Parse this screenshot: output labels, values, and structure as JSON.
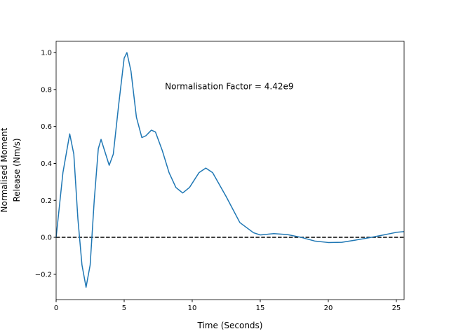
{
  "chart_data": {
    "type": "line",
    "x_label": "Time (Seconds)",
    "y_label": [
      "Normalised Moment",
      "Release (Nm/s)"
    ],
    "annotation": {
      "text": "Normalisation Factor = 4.42e9",
      "x": 8,
      "y": 0.82
    },
    "reference_line": {
      "y": 0,
      "color": "#000000"
    },
    "x": [
      0,
      0.5,
      1.0,
      1.3,
      1.6,
      1.9,
      2.2,
      2.5,
      2.8,
      3.1,
      3.3,
      3.6,
      3.9,
      4.2,
      4.6,
      5.0,
      5.2,
      5.5,
      5.9,
      6.3,
      6.6,
      7.0,
      7.3,
      7.8,
      8.3,
      8.8,
      9.3,
      9.8,
      10.5,
      11.0,
      11.5,
      12.5,
      13.5,
      14.5,
      15,
      16,
      17,
      18,
      19,
      20,
      21,
      22,
      23,
      24,
      25,
      25.57
    ],
    "series": [
      {
        "color": "#1f77b4",
        "values": [
          0,
          0.35,
          0.56,
          0.45,
          0.1,
          -0.15,
          -0.27,
          -0.15,
          0.2,
          0.48,
          0.53,
          0.46,
          0.39,
          0.45,
          0.72,
          0.97,
          1.0,
          0.9,
          0.65,
          0.54,
          0.55,
          0.58,
          0.57,
          0.47,
          0.35,
          0.27,
          0.24,
          0.27,
          0.35,
          0.375,
          0.35,
          0.22,
          0.08,
          0.025,
          0.013,
          0.02,
          0.015,
          0.0,
          -0.02,
          -0.028,
          -0.027,
          -0.015,
          -0.002,
          0.012,
          0.027,
          0.031
        ]
      }
    ],
    "xlim": [
      0,
      25.57
    ],
    "ylim": [
      -0.337,
      1.061
    ],
    "xticks": [
      0,
      5,
      10,
      15,
      20,
      25
    ],
    "yticks": [
      {
        "value": -0.2,
        "label": "−0.2"
      },
      {
        "value": 0,
        "label": "0.0"
      },
      0.2,
      0.4,
      0.6,
      0.8,
      {
        "value": 1,
        "label": "1.0"
      }
    ]
  }
}
